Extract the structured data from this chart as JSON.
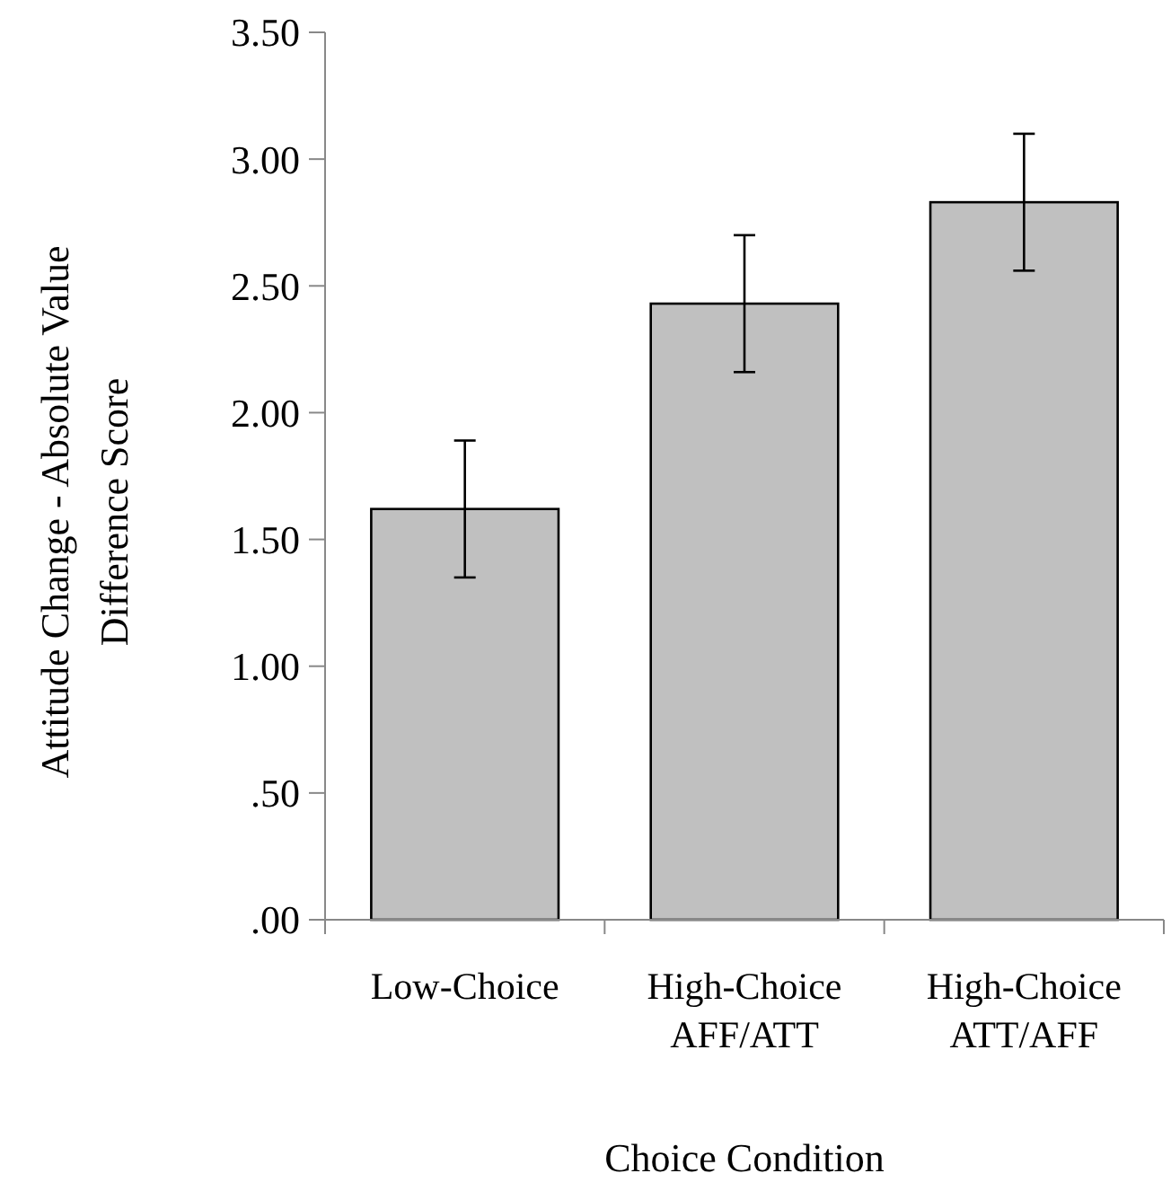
{
  "chart_data": {
    "type": "bar",
    "xlabel": "Choice Condition",
    "ylabel": "Attitude Change - Absolute Value\nDifference Score",
    "categories": [
      "Low-Choice",
      "High-Choice\nAFF/ATT",
      "High-Choice\nATT/AFF"
    ],
    "values": [
      1.62,
      2.43,
      2.83
    ],
    "errors": [
      0.27,
      0.27,
      0.27
    ],
    "color": "#c0c0c0",
    "ylim": [
      0,
      3.5
    ],
    "yticks": [
      {
        "value": 0,
        "label": ".00"
      },
      {
        "value": 0.5,
        "label": ".50"
      },
      {
        "value": 1,
        "label": "1.00"
      },
      {
        "value": 1.5,
        "label": "1.50"
      },
      {
        "value": 2,
        "label": "2.00"
      },
      {
        "value": 2.5,
        "label": "2.50"
      },
      {
        "value": 3,
        "label": "3.00"
      },
      {
        "value": 3.5,
        "label": "3.50"
      }
    ]
  }
}
